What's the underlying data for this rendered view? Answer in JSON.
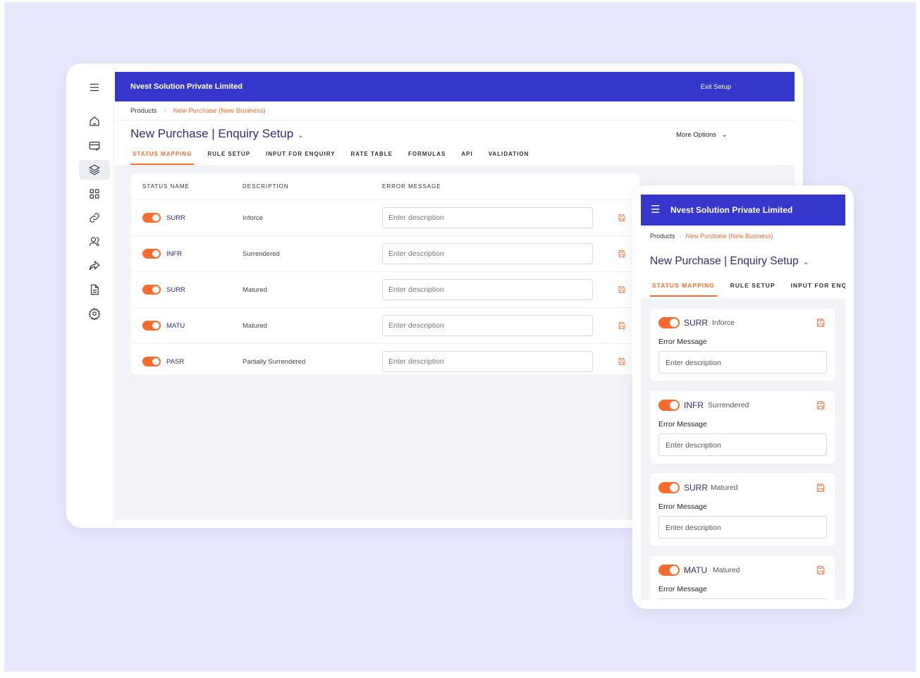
{
  "colors": {
    "header": "#3537cc",
    "accent": "#fd6a2c",
    "title": "#2a2e7a",
    "background": "#e7e8fc"
  },
  "app": {
    "company": "Nvest Solution Private Limited",
    "exit": "Exit Setup",
    "more_options": "More Options"
  },
  "breadcrumb": {
    "root": "Products",
    "current": "New Purchase (New Business)"
  },
  "page_title": "New Purchase | Enquiry Setup",
  "tabs": [
    "STATUS MAPPING",
    "RULE SETUP",
    "INPUT FOR ENQUIRY",
    "RATE TABLE",
    "FORMULAS",
    "API",
    "VALIDATION"
  ],
  "mobile_tabs": [
    "STATUS MAPPING",
    "RULE SETUP",
    "INPUT FOR ENQU"
  ],
  "sidebar_icons": [
    "menu-icon",
    "home-icon",
    "card-icon",
    "layers-icon",
    "grid-icon",
    "link-icon",
    "users-icon",
    "share-icon",
    "document-icon",
    "settings-icon"
  ],
  "table": {
    "headers": [
      "STATUS NAME",
      "DESCRIPTION",
      "ERROR MESSAGE"
    ],
    "rows": [
      {
        "code": "SURR",
        "desc": "Inforce",
        "enabled": true
      },
      {
        "code": "INFR",
        "desc": "Surrendered",
        "enabled": true
      },
      {
        "code": "SURR",
        "desc": "Matured",
        "enabled": true
      },
      {
        "code": "MATU",
        "desc": "Matured",
        "enabled": true
      },
      {
        "code": "PASR",
        "desc": "Partially Surrendered",
        "enabled": true
      }
    ]
  },
  "placeholder": "Enter description",
  "error_label": "Error Message"
}
